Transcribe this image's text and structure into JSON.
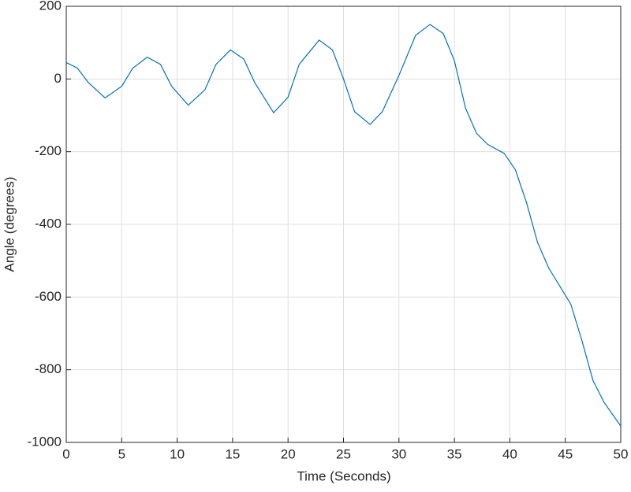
{
  "chart_data": {
    "type": "line",
    "x_label": "Time (Seconds)",
    "y_label": "Angle (degrees)",
    "x": [
      0,
      1,
      2,
      3.5,
      5,
      6,
      7.3,
      8.5,
      9.5,
      11,
      12.5,
      13.5,
      14.8,
      16,
      17,
      18.7,
      20,
      21,
      22.8,
      24,
      25,
      26,
      27.4,
      28.5,
      30,
      31.5,
      32.8,
      34,
      35,
      36,
      37,
      38,
      39.5,
      40.5,
      41.5,
      42.5,
      43.5,
      44.5,
      45.5,
      46.5,
      47.5,
      48.5,
      50
    ],
    "series": [
      {
        "color": "#0072bd",
        "values": [
          45,
          30,
          -10,
          -52,
          -20,
          30,
          60,
          40,
          -20,
          -72,
          -30,
          40,
          80,
          55,
          -10,
          -93,
          -50,
          40,
          107,
          80,
          0,
          -90,
          -125,
          -90,
          10,
          120,
          150,
          125,
          50,
          -80,
          -150,
          -180,
          -205,
          -250,
          -340,
          -450,
          -520,
          -570,
          -620,
          -720,
          -830,
          -890,
          -955
        ]
      }
    ],
    "xlim": [
      0,
      50
    ],
    "xticks": [
      0,
      5,
      10,
      15,
      20,
      25,
      30,
      35,
      40,
      45,
      50
    ],
    "ylim": [
      -1000,
      200
    ],
    "yticks": [
      -1000,
      -800,
      -600,
      -400,
      -200,
      0,
      200
    ],
    "grid": true
  }
}
